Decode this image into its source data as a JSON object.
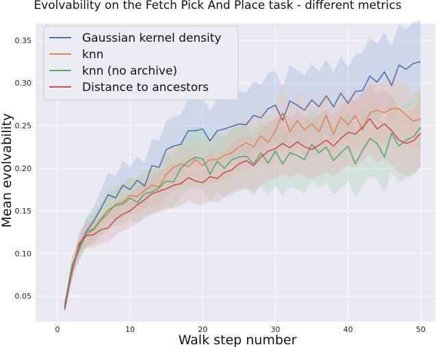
{
  "chart_data": {
    "type": "line",
    "title": "Evolvability on the Fetch Pick And Place task - different metrics",
    "xlabel": "Walk step number",
    "ylabel": "Mean evolvability",
    "xlim": [
      -3,
      52
    ],
    "ylim": [
      0.02,
      0.37
    ],
    "xticks": [
      0,
      10,
      20,
      30,
      40,
      50
    ],
    "yticks": [
      0.05,
      0.1,
      0.15,
      0.2,
      0.25,
      0.3,
      0.35
    ],
    "grid": true,
    "background_color": "#e9e9f3",
    "legend_position": "top-left",
    "x": [
      1,
      2,
      3,
      4,
      5,
      6,
      7,
      8,
      9,
      10,
      11,
      12,
      13,
      14,
      15,
      16,
      17,
      18,
      19,
      20,
      21,
      22,
      23,
      24,
      25,
      26,
      27,
      28,
      29,
      30,
      31,
      32,
      33,
      34,
      35,
      36,
      37,
      38,
      39,
      40,
      41,
      42,
      43,
      44,
      45,
      46,
      47,
      48,
      49,
      50
    ],
    "series": [
      {
        "name": "Gaussian kernel density",
        "color": "#4c72b0",
        "band_color": "#9fb4d8",
        "values": [
          0.034,
          0.08,
          0.108,
          0.126,
          0.138,
          0.153,
          0.169,
          0.165,
          0.18,
          0.175,
          0.186,
          0.179,
          0.203,
          0.201,
          0.222,
          0.226,
          0.228,
          0.244,
          0.244,
          0.246,
          0.232,
          0.244,
          0.246,
          0.249,
          0.252,
          0.251,
          0.262,
          0.259,
          0.27,
          0.274,
          0.256,
          0.279,
          0.274,
          0.268,
          0.28,
          0.272,
          0.285,
          0.272,
          0.288,
          0.276,
          0.29,
          0.291,
          0.308,
          0.301,
          0.313,
          0.297,
          0.321,
          0.316,
          0.323,
          0.325
        ],
        "lower": [
          0.03,
          0.07,
          0.095,
          0.11,
          0.12,
          0.132,
          0.143,
          0.14,
          0.152,
          0.148,
          0.158,
          0.152,
          0.172,
          0.17,
          0.188,
          0.192,
          0.193,
          0.207,
          0.207,
          0.209,
          0.197,
          0.207,
          0.209,
          0.212,
          0.214,
          0.213,
          0.222,
          0.22,
          0.229,
          0.233,
          0.217,
          0.237,
          0.233,
          0.227,
          0.238,
          0.231,
          0.242,
          0.231,
          0.245,
          0.234,
          0.246,
          0.247,
          0.262,
          0.256,
          0.266,
          0.252,
          0.273,
          0.268,
          0.274,
          0.276
        ],
        "upper": [
          0.038,
          0.09,
          0.121,
          0.142,
          0.156,
          0.174,
          0.195,
          0.19,
          0.208,
          0.202,
          0.214,
          0.206,
          0.234,
          0.232,
          0.256,
          0.26,
          0.263,
          0.281,
          0.281,
          0.283,
          0.267,
          0.281,
          0.283,
          0.286,
          0.29,
          0.289,
          0.302,
          0.298,
          0.311,
          0.315,
          0.295,
          0.321,
          0.315,
          0.309,
          0.322,
          0.313,
          0.328,
          0.313,
          0.331,
          0.318,
          0.334,
          0.335,
          0.354,
          0.346,
          0.36,
          0.342,
          0.369,
          0.363,
          0.371,
          0.374
        ]
      },
      {
        "name": "knn",
        "color": "#dd8452",
        "band_color": "#f0c4a8",
        "values": [
          0.04,
          0.084,
          0.106,
          0.122,
          0.128,
          0.139,
          0.147,
          0.158,
          0.16,
          0.168,
          0.167,
          0.174,
          0.18,
          0.178,
          0.193,
          0.201,
          0.205,
          0.202,
          0.21,
          0.203,
          0.21,
          0.21,
          0.215,
          0.218,
          0.225,
          0.23,
          0.225,
          0.238,
          0.23,
          0.244,
          0.265,
          0.243,
          0.256,
          0.245,
          0.252,
          0.243,
          0.262,
          0.24,
          0.26,
          0.251,
          0.262,
          0.245,
          0.265,
          0.268,
          0.265,
          0.27,
          0.27,
          0.262,
          0.255,
          0.258
        ],
        "lower": [
          0.036,
          0.074,
          0.093,
          0.108,
          0.112,
          0.122,
          0.129,
          0.139,
          0.14,
          0.147,
          0.146,
          0.152,
          0.157,
          0.155,
          0.168,
          0.175,
          0.179,
          0.176,
          0.183,
          0.177,
          0.183,
          0.183,
          0.187,
          0.19,
          0.196,
          0.2,
          0.196,
          0.207,
          0.2,
          0.212,
          0.231,
          0.211,
          0.223,
          0.213,
          0.219,
          0.211,
          0.228,
          0.209,
          0.226,
          0.218,
          0.228,
          0.213,
          0.23,
          0.233,
          0.23,
          0.235,
          0.235,
          0.228,
          0.222,
          0.224
        ],
        "upper": [
          0.044,
          0.094,
          0.119,
          0.136,
          0.144,
          0.156,
          0.165,
          0.177,
          0.18,
          0.189,
          0.188,
          0.196,
          0.203,
          0.201,
          0.218,
          0.227,
          0.231,
          0.228,
          0.237,
          0.229,
          0.237,
          0.237,
          0.243,
          0.246,
          0.254,
          0.26,
          0.254,
          0.269,
          0.26,
          0.276,
          0.299,
          0.275,
          0.289,
          0.277,
          0.285,
          0.275,
          0.296,
          0.271,
          0.294,
          0.284,
          0.296,
          0.277,
          0.3,
          0.303,
          0.3,
          0.305,
          0.305,
          0.296,
          0.288,
          0.292
        ]
      },
      {
        "name": "knn (no archive)",
        "color": "#55a868",
        "band_color": "#a8d3b3",
        "values": [
          0.038,
          0.086,
          0.104,
          0.125,
          0.129,
          0.14,
          0.151,
          0.156,
          0.158,
          0.165,
          0.16,
          0.17,
          0.172,
          0.177,
          0.185,
          0.184,
          0.2,
          0.208,
          0.213,
          0.211,
          0.193,
          0.208,
          0.2,
          0.21,
          0.213,
          0.214,
          0.205,
          0.218,
          0.206,
          0.22,
          0.205,
          0.218,
          0.215,
          0.21,
          0.228,
          0.218,
          0.225,
          0.209,
          0.218,
          0.226,
          0.205,
          0.221,
          0.235,
          0.229,
          0.213,
          0.241,
          0.226,
          0.233,
          0.237,
          0.248
        ],
        "lower": [
          0.034,
          0.076,
          0.091,
          0.108,
          0.111,
          0.12,
          0.129,
          0.133,
          0.134,
          0.14,
          0.135,
          0.143,
          0.145,
          0.149,
          0.155,
          0.154,
          0.167,
          0.173,
          0.177,
          0.175,
          0.159,
          0.172,
          0.165,
          0.173,
          0.175,
          0.176,
          0.168,
          0.179,
          0.168,
          0.18,
          0.167,
          0.178,
          0.175,
          0.171,
          0.186,
          0.177,
          0.183,
          0.169,
          0.177,
          0.184,
          0.166,
          0.179,
          0.191,
          0.186,
          0.172,
          0.196,
          0.183,
          0.189,
          0.192,
          0.201
        ],
        "upper": [
          0.042,
          0.096,
          0.117,
          0.142,
          0.147,
          0.16,
          0.173,
          0.179,
          0.182,
          0.19,
          0.185,
          0.197,
          0.199,
          0.205,
          0.215,
          0.214,
          0.233,
          0.243,
          0.249,
          0.247,
          0.227,
          0.244,
          0.235,
          0.247,
          0.251,
          0.252,
          0.242,
          0.257,
          0.244,
          0.26,
          0.243,
          0.258,
          0.255,
          0.249,
          0.27,
          0.259,
          0.267,
          0.249,
          0.259,
          0.268,
          0.244,
          0.263,
          0.279,
          0.272,
          0.254,
          0.286,
          0.269,
          0.277,
          0.282,
          0.295
        ]
      },
      {
        "name": "Distance to ancestors",
        "color": "#c44e52",
        "band_color": "#e2a8aa",
        "values": [
          0.036,
          0.078,
          0.112,
          0.121,
          0.122,
          0.128,
          0.13,
          0.14,
          0.146,
          0.15,
          0.157,
          0.163,
          0.17,
          0.173,
          0.176,
          0.18,
          0.182,
          0.189,
          0.185,
          0.183,
          0.19,
          0.188,
          0.195,
          0.198,
          0.205,
          0.209,
          0.203,
          0.213,
          0.22,
          0.223,
          0.229,
          0.224,
          0.231,
          0.225,
          0.222,
          0.227,
          0.233,
          0.226,
          0.235,
          0.242,
          0.24,
          0.248,
          0.258,
          0.246,
          0.252,
          0.244,
          0.233,
          0.229,
          0.232,
          0.241
        ],
        "lower": [
          0.032,
          0.068,
          0.099,
          0.106,
          0.107,
          0.112,
          0.113,
          0.122,
          0.127,
          0.13,
          0.136,
          0.141,
          0.147,
          0.149,
          0.151,
          0.154,
          0.156,
          0.162,
          0.158,
          0.156,
          0.162,
          0.16,
          0.166,
          0.168,
          0.174,
          0.177,
          0.172,
          0.18,
          0.186,
          0.188,
          0.193,
          0.189,
          0.195,
          0.19,
          0.187,
          0.191,
          0.196,
          0.19,
          0.197,
          0.203,
          0.201,
          0.208,
          0.216,
          0.206,
          0.211,
          0.204,
          0.195,
          0.191,
          0.194,
          0.201
        ],
        "upper": [
          0.04,
          0.088,
          0.125,
          0.136,
          0.137,
          0.144,
          0.147,
          0.158,
          0.165,
          0.17,
          0.178,
          0.185,
          0.193,
          0.197,
          0.201,
          0.206,
          0.208,
          0.216,
          0.212,
          0.21,
          0.218,
          0.216,
          0.224,
          0.228,
          0.236,
          0.241,
          0.234,
          0.246,
          0.254,
          0.258,
          0.265,
          0.259,
          0.267,
          0.26,
          0.257,
          0.263,
          0.27,
          0.262,
          0.273,
          0.281,
          0.279,
          0.288,
          0.3,
          0.286,
          0.293,
          0.284,
          0.271,
          0.267,
          0.27,
          0.281
        ]
      }
    ]
  }
}
